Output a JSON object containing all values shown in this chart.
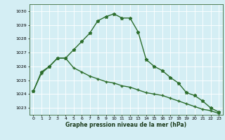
{
  "line1_x": [
    0,
    1,
    2,
    3,
    4,
    5,
    6,
    7,
    8,
    9,
    10,
    11,
    12,
    13,
    14,
    15,
    16,
    17,
    18,
    19,
    20,
    21,
    22,
    23
  ],
  "line1_y": [
    1024.2,
    1025.6,
    1026.0,
    1026.6,
    1026.6,
    1027.2,
    1027.8,
    1028.4,
    1029.3,
    1029.6,
    1029.8,
    1029.5,
    1029.5,
    1028.5,
    1026.5,
    1026.0,
    1025.7,
    1025.2,
    1024.8,
    1024.1,
    1023.9,
    1023.5,
    1023.0,
    1022.7
  ],
  "line2_x": [
    0,
    1,
    2,
    3,
    4,
    5,
    6,
    7,
    8,
    9,
    10,
    11,
    12,
    13,
    14,
    15,
    16,
    17,
    18,
    19,
    20,
    21,
    22,
    23
  ],
  "line2_y": [
    1024.2,
    1025.5,
    1026.0,
    1026.6,
    1026.6,
    1025.9,
    1025.6,
    1025.3,
    1025.1,
    1024.9,
    1024.8,
    1024.6,
    1024.5,
    1024.3,
    1024.1,
    1024.0,
    1023.9,
    1023.7,
    1023.5,
    1023.3,
    1023.1,
    1022.9,
    1022.8,
    1022.6
  ],
  "line_color": "#2d6e2d",
  "bg_color": "#d4eef4",
  "grid_color": "#ffffff",
  "ylabel_ticks": [
    1023,
    1024,
    1025,
    1026,
    1027,
    1028,
    1029,
    1030
  ],
  "xlabel": "Graphe pression niveau de la mer (hPa)",
  "ylim": [
    1022.5,
    1030.5
  ],
  "xlim": [
    -0.5,
    23.5
  ]
}
